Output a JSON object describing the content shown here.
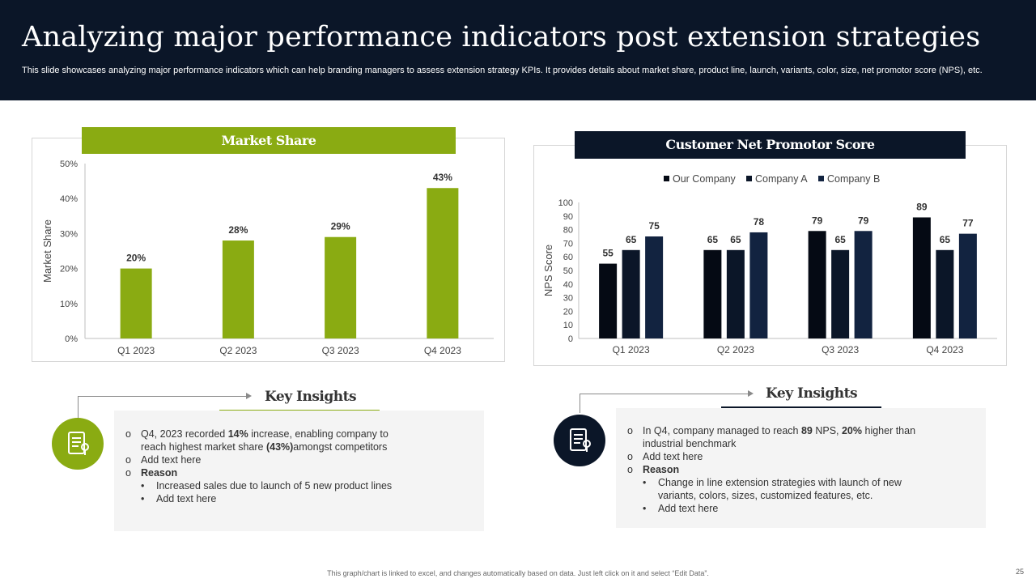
{
  "header": {
    "title": "Analyzing major performance indicators post extension strategies",
    "subtitle": "This slide showcases analyzing major performance indicators which can help branding managers to assess extension strategy KPIs. It provides details about market share, product line, launch, variants, color, size, net promotor score (NPS), etc."
  },
  "colors": {
    "header_bg": "#0b1628",
    "green": "#8aab12",
    "navy": "#0b1628",
    "series_our": "#050a14",
    "series_a": "#0b1628",
    "series_b": "#122340"
  },
  "left_panel": {
    "title": "Market Share"
  },
  "right_panel": {
    "title": "Customer Net Promotor Score"
  },
  "chart_data": [
    {
      "type": "bar",
      "title": "Market Share",
      "categories": [
        "Q1 2023",
        "Q2 2023",
        "Q3 2023",
        "Q4 2023"
      ],
      "values": [
        20,
        28,
        29,
        43
      ],
      "value_labels": [
        "20%",
        "28%",
        "29%",
        "43%"
      ],
      "ylabel": "Market Share",
      "ylim": [
        0,
        50
      ],
      "yticks": [
        0,
        10,
        20,
        30,
        40,
        50
      ],
      "ytick_labels": [
        "0%",
        "10%",
        "20%",
        "30%",
        "40%",
        "50%"
      ],
      "grid": false
    },
    {
      "type": "bar",
      "title": "Customer Net Promotor Score",
      "categories": [
        "Q1 2023",
        "Q2 2023",
        "Q3 2023",
        "Q4 2023"
      ],
      "series": [
        {
          "name": "Our Company",
          "values": [
            55,
            65,
            79,
            89
          ]
        },
        {
          "name": "Company A",
          "values": [
            65,
            65,
            65,
            65
          ]
        },
        {
          "name": "Company B",
          "values": [
            75,
            78,
            79,
            77
          ]
        }
      ],
      "ylabel": "NPS Score",
      "ylim": [
        0,
        100
      ],
      "yticks": [
        0,
        10,
        20,
        30,
        40,
        50,
        60,
        70,
        80,
        90,
        100
      ],
      "legend": "top-center",
      "grid": false
    }
  ],
  "insights_left": {
    "heading": "Key Insights",
    "icon": "document-list-icon",
    "b1_pre": "Q4, 2023 recorded ",
    "b1_bold1": "14%",
    "b1_mid": " increase, enabling company to reach highest market share ",
    "b1_bold2": "(43%)",
    "b1_post": "amongst  competitors",
    "b2": "Add text here",
    "b3": "Reason",
    "s1": "Increased sales due to launch of 5 new product lines",
    "s2": "Add text here"
  },
  "insights_right": {
    "heading": "Key Insights",
    "icon": "document-list-icon",
    "b1_pre": "In Q4, company managed to reach ",
    "b1_bold1": "89",
    "b1_mid": " NPS, ",
    "b1_bold2": "20%",
    "b1_post": "  higher than industrial benchmark",
    "b2": "Add text here",
    "b3": "Reason",
    "s1": "Change in line extension strategies with launch of new variants,  colors, sizes, customized features,  etc.",
    "s2": "Add text here"
  },
  "markers": {
    "bullet": "o",
    "sub_bullet": "•"
  },
  "footer": {
    "note": "This graph/chart is linked to excel, and changes automatically based on data. Just left click on it and select “Edit Data”.",
    "page": "25"
  }
}
